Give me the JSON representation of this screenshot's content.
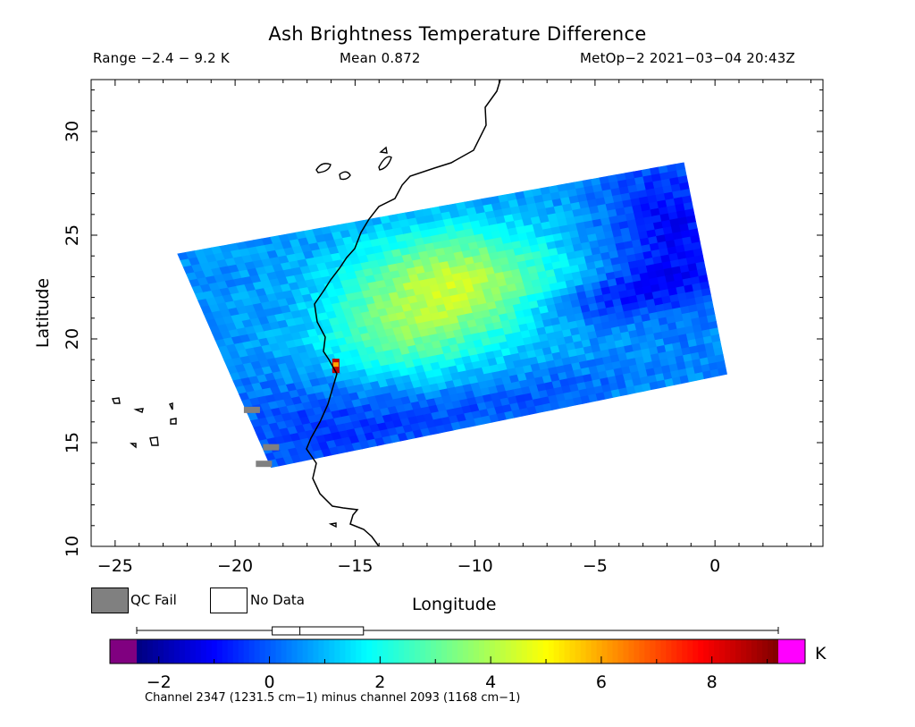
{
  "header": {
    "title": "Ash Brightness Temperature Difference",
    "range": "Range −2.4 − 9.2 K",
    "mean": "Mean 0.872",
    "source": "MetOp−2 2021−03−04 20:43Z"
  },
  "map": {
    "xlabel": "Longitude",
    "ylabel": "Latitude",
    "lon_range": [
      -26,
      4.5
    ],
    "lat_range": [
      10,
      32.5
    ],
    "x_ticks": [
      {
        "value": -25,
        "label": "−25"
      },
      {
        "value": -20,
        "label": "−20"
      },
      {
        "value": -15,
        "label": "−15"
      },
      {
        "value": -10,
        "label": "−10"
      },
      {
        "value": -5,
        "label": "−5"
      },
      {
        "value": 0,
        "label": "0"
      }
    ],
    "y_ticks": [
      {
        "value": 10,
        "label": "10"
      },
      {
        "value": 15,
        "label": "15"
      },
      {
        "value": 20,
        "label": "20"
      },
      {
        "value": 25,
        "label": "25"
      },
      {
        "value": 30,
        "label": "30"
      }
    ],
    "swath_corners": [
      [
        -22.4,
        24.1
      ],
      [
        -1.3,
        28.5
      ],
      [
        0.5,
        18.3
      ],
      [
        -18.5,
        13.8
      ]
    ],
    "hotspot": {
      "lon": -15.8,
      "lat": 18.7,
      "value": 8.5
    },
    "qc_fail_patches": [
      [
        -19.3,
        16.6
      ],
      [
        -18.5,
        14.8
      ],
      [
        -18.8,
        14.0
      ]
    ],
    "colors": {
      "coast": "#000000",
      "qc_fail": "#808080"
    }
  },
  "legend": {
    "qc_fail": "QC Fail",
    "no_data": "No Data"
  },
  "colorbar": {
    "min": -2.8,
    "max": 9.4,
    "unit": "K",
    "ticks": [
      {
        "value": -2,
        "label": "−2"
      },
      {
        "value": 0,
        "label": "0"
      },
      {
        "value": 2,
        "label": "2"
      },
      {
        "value": 4,
        "label": "4"
      },
      {
        "value": 6,
        "label": "6"
      },
      {
        "value": 8,
        "label": "8"
      }
    ],
    "under_color": "#800080",
    "over_color": "#ff00ff",
    "boxplot": {
      "whisker_low": -2.4,
      "q1": 0.05,
      "median": 0.55,
      "q3": 1.7,
      "whisker_high": 9.2
    },
    "note": "Channel 2347 (1231.5 cm−1) minus channel 2093 (1168 cm−1)"
  }
}
